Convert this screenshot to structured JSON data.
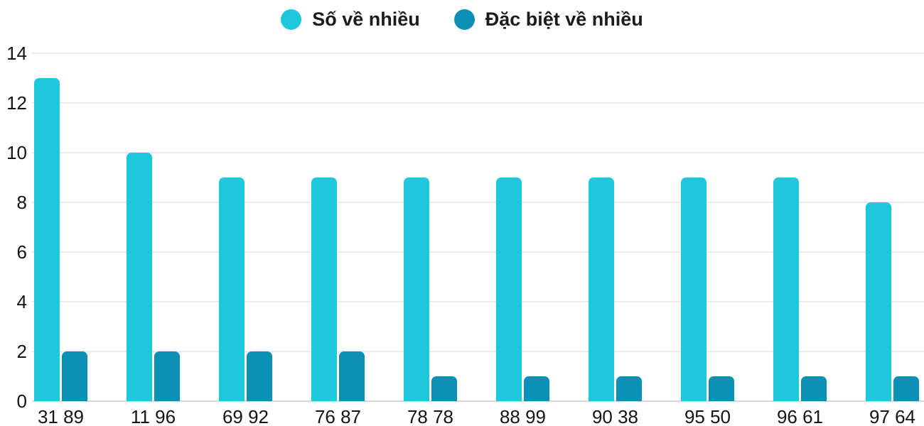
{
  "chart_data": {
    "type": "bar",
    "categories": [
      "31 89",
      "11 96",
      "69 92",
      "76 87",
      "78 78",
      "88 99",
      "90 38",
      "95 50",
      "96 61",
      "97 64"
    ],
    "series": [
      {
        "name": "Số về nhiều",
        "color": "#1dc8dc",
        "values": [
          13,
          10,
          9,
          9,
          9,
          9,
          9,
          9,
          9,
          8
        ]
      },
      {
        "name": "Đặc biệt về nhiều",
        "color": "#0b90b5",
        "values": [
          2,
          2,
          2,
          2,
          1,
          1,
          1,
          1,
          1,
          1
        ]
      }
    ],
    "ylim": [
      0,
      14
    ],
    "yticks": [
      0,
      2,
      4,
      6,
      8,
      10,
      12,
      14
    ],
    "grid": true,
    "legend_position": "top-center"
  },
  "colors": {
    "series_light": "#1dc8dc",
    "series_dark": "#0b90b5",
    "gridline": "#e9e9e9",
    "baseline": "#d8d8d8",
    "text": "#141414",
    "background": "#ffffff"
  }
}
